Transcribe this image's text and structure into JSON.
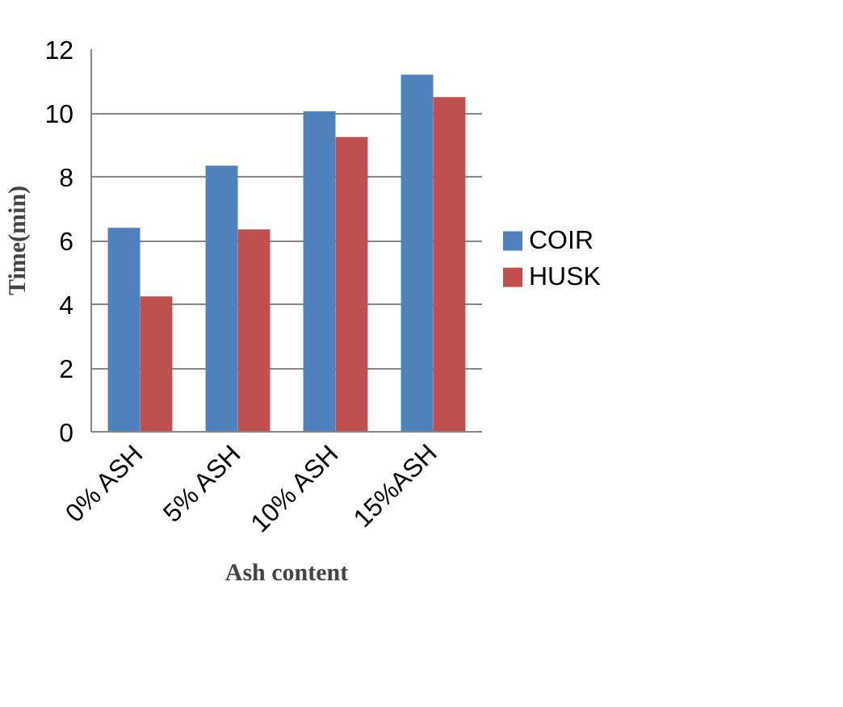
{
  "chart_data": {
    "type": "bar",
    "xlabel": "Ash content",
    "ylabel": "Time(min)",
    "categories": [
      "0% ASH",
      "5% ASH",
      "10% ASH",
      "15%ASH"
    ],
    "series": [
      {
        "name": "COIR",
        "color": "#4f81bd",
        "values": [
          6.4,
          8.35,
          10.05,
          11.2
        ]
      },
      {
        "name": "HUSK",
        "color": "#c0504d",
        "values": [
          4.25,
          6.35,
          9.25,
          10.5
        ]
      }
    ],
    "ylim": [
      0,
      12
    ],
    "yticks": [
      0,
      2,
      4,
      6,
      8,
      10,
      12
    ],
    "grid": "y",
    "legend": "right"
  }
}
